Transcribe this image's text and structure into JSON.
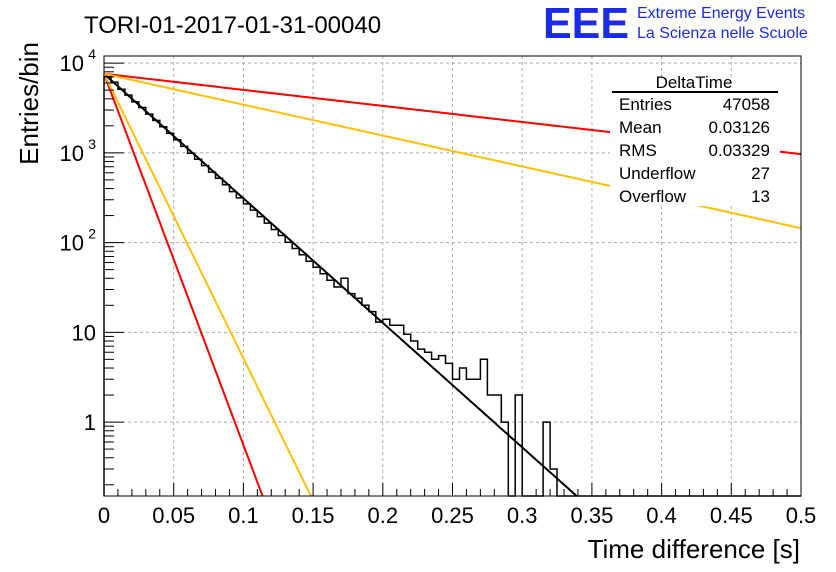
{
  "header": {
    "title": "TORI-01-2017-01-31-00040",
    "logo_text": "EEE",
    "logo_line1": "Extreme Energy Events",
    "logo_line2": "La Scienza nelle Scuole",
    "logo_color": "#1a2be6"
  },
  "stats_box": {
    "title": "DeltaTime",
    "rows": [
      {
        "label": "Entries",
        "value": "47058"
      },
      {
        "label": "Mean",
        "value": "0.03126"
      },
      {
        "label": "RMS",
        "value": "0.03329"
      },
      {
        "label": "Underflow",
        "value": "27"
      },
      {
        "label": "Overflow",
        "value": "13"
      }
    ]
  },
  "chart_data": {
    "type": "line",
    "xlabel": "Time difference [s]",
    "ylabel": "Entries/bin",
    "xlim": [
      0,
      0.5
    ],
    "ylim": [
      0.15,
      12000
    ],
    "yscale": "log",
    "grid": true,
    "x_ticks": [
      {
        "v": 0,
        "label": "0"
      },
      {
        "v": 0.05,
        "label": "0.05"
      },
      {
        "v": 0.1,
        "label": "0.1"
      },
      {
        "v": 0.15,
        "label": "0.15"
      },
      {
        "v": 0.2,
        "label": "0.2"
      },
      {
        "v": 0.25,
        "label": "0.25"
      },
      {
        "v": 0.3,
        "label": "0.3"
      },
      {
        "v": 0.35,
        "label": "0.35"
      },
      {
        "v": 0.4,
        "label": "0.4"
      },
      {
        "v": 0.45,
        "label": "0.45"
      },
      {
        "v": 0.5,
        "label": "0.5"
      }
    ],
    "y_ticks": [
      {
        "v": 1,
        "label": "1"
      },
      {
        "v": 10,
        "label": "10"
      },
      {
        "v": 100,
        "label": "10",
        "exp": "2"
      },
      {
        "v": 1000,
        "label": "10",
        "exp": "3"
      },
      {
        "v": 10000,
        "label": "10",
        "exp": "4"
      }
    ],
    "histogram": {
      "bin_width": 0.005,
      "values": [
        7050,
        6150,
        5100,
        4400,
        3700,
        3200,
        2700,
        2300,
        1950,
        1650,
        1400,
        1180,
        990,
        850,
        720,
        610,
        520,
        440,
        370,
        315,
        270,
        230,
        195,
        165,
        140,
        120,
        101,
        86,
        73,
        62,
        53,
        45,
        38,
        32,
        40,
        27,
        24,
        20,
        17,
        13,
        14,
        12,
        12,
        9.5,
        8,
        6.5,
        6,
        5,
        5.5,
        4.5,
        3,
        4,
        3,
        3,
        5,
        2,
        2,
        1,
        0,
        2,
        0,
        0,
        0,
        1,
        0.3,
        0,
        0,
        0,
        0,
        0,
        0,
        0,
        0,
        0,
        0,
        0,
        0,
        0,
        0,
        0,
        0,
        0,
        0,
        0,
        0,
        0,
        0,
        0,
        0,
        0,
        0,
        0,
        0,
        0,
        0,
        0,
        0,
        0,
        0,
        0
      ],
      "color": "#000000"
    },
    "fits": [
      {
        "color": "#000000",
        "a": 7600,
        "tau": 0.0313
      },
      {
        "color": "#ff0000",
        "a": 7600,
        "tau": 0.2427
      },
      {
        "color": "#ffc000",
        "a": 7600,
        "tau": 0.1262
      },
      {
        "color": "#ff0000",
        "a": 7600,
        "tau": 0.0105
      },
      {
        "color": "#ffc000",
        "a": 7600,
        "tau": 0.0137
      }
    ]
  }
}
